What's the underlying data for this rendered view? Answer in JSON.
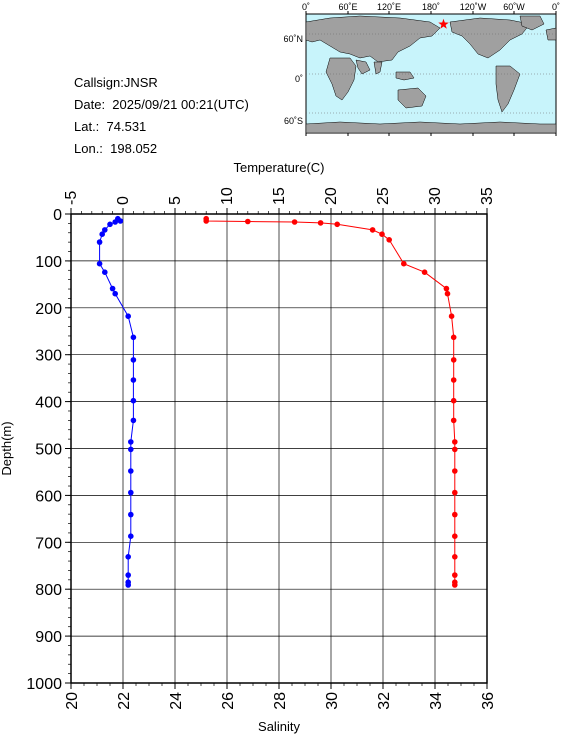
{
  "info": {
    "callsign": "Callsign:JNSR",
    "date": "Date:  2025/09/21 00:21(UTC)",
    "lat": "Lat.:  74.531",
    "lon": "Lon.:  198.052"
  },
  "map": {
    "lon_labels": [
      "0˚",
      "60˚E",
      "120˚E",
      "180˚",
      "120˚W",
      "60˚W",
      "0˚"
    ],
    "lat_labels": [
      "60˚N",
      "0˚",
      "60˚S"
    ],
    "ocean_color": "#c8f4fb",
    "land_color": "#a0a0a0",
    "marker_color": "#ff0000",
    "marker_symbol": "star"
  },
  "chart_data": {
    "type": "line",
    "xlabel_top": "Temperature(C)",
    "xlabel_bottom": "Salinity",
    "ylabel": "Depth(m)",
    "temperature_ticks": [
      "-5",
      "0",
      "5",
      "10",
      "15",
      "20",
      "25",
      "30",
      "35"
    ],
    "salinity_ticks": [
      "20",
      "22",
      "24",
      "26",
      "28",
      "30",
      "32",
      "34",
      "36"
    ],
    "depth_ticks": [
      "0",
      "100",
      "200",
      "300",
      "400",
      "500",
      "600",
      "700",
      "800",
      "900",
      "1000"
    ],
    "temperature_range": [
      -5,
      35
    ],
    "salinity_range": [
      20,
      36
    ],
    "depth_range": [
      0,
      1000
    ],
    "grid": true,
    "series": [
      {
        "name": "Temperature",
        "axis": "top",
        "color": "#ff0000",
        "points": [
          [
            8.0,
            10
          ],
          [
            8.0,
            15
          ],
          [
            12.0,
            16
          ],
          [
            16.5,
            17
          ],
          [
            19.0,
            19
          ],
          [
            20.6,
            22
          ],
          [
            24.0,
            34
          ],
          [
            24.9,
            43
          ],
          [
            25.6,
            55
          ],
          [
            27.0,
            106
          ],
          [
            29.0,
            124
          ],
          [
            31.1,
            159
          ],
          [
            31.2,
            170
          ],
          [
            31.6,
            218
          ],
          [
            31.8,
            263
          ],
          [
            31.8,
            311
          ],
          [
            31.8,
            354
          ],
          [
            31.8,
            398
          ],
          [
            31.8,
            440
          ],
          [
            31.9,
            486
          ],
          [
            31.9,
            502
          ],
          [
            31.9,
            548
          ],
          [
            31.9,
            594
          ],
          [
            31.9,
            641
          ],
          [
            31.9,
            687
          ],
          [
            31.9,
            731
          ],
          [
            31.9,
            770
          ],
          [
            31.9,
            785
          ],
          [
            31.9,
            791
          ]
        ]
      },
      {
        "name": "Salinity",
        "axis": "bottom",
        "color": "#0000ff",
        "points": [
          [
            21.8,
            10
          ],
          [
            21.9,
            15
          ],
          [
            21.7,
            17
          ],
          [
            21.5,
            22
          ],
          [
            21.3,
            34
          ],
          [
            21.2,
            43
          ],
          [
            21.1,
            60
          ],
          [
            21.1,
            106
          ],
          [
            21.3,
            124
          ],
          [
            21.6,
            159
          ],
          [
            21.7,
            170
          ],
          [
            22.2,
            218
          ],
          [
            22.4,
            263
          ],
          [
            22.4,
            311
          ],
          [
            22.4,
            354
          ],
          [
            22.4,
            398
          ],
          [
            22.4,
            440
          ],
          [
            22.3,
            486
          ],
          [
            22.3,
            502
          ],
          [
            22.3,
            548
          ],
          [
            22.3,
            594
          ],
          [
            22.3,
            641
          ],
          [
            22.3,
            687
          ],
          [
            22.2,
            731
          ],
          [
            22.2,
            770
          ],
          [
            22.2,
            785
          ],
          [
            22.2,
            791
          ]
        ]
      }
    ]
  }
}
